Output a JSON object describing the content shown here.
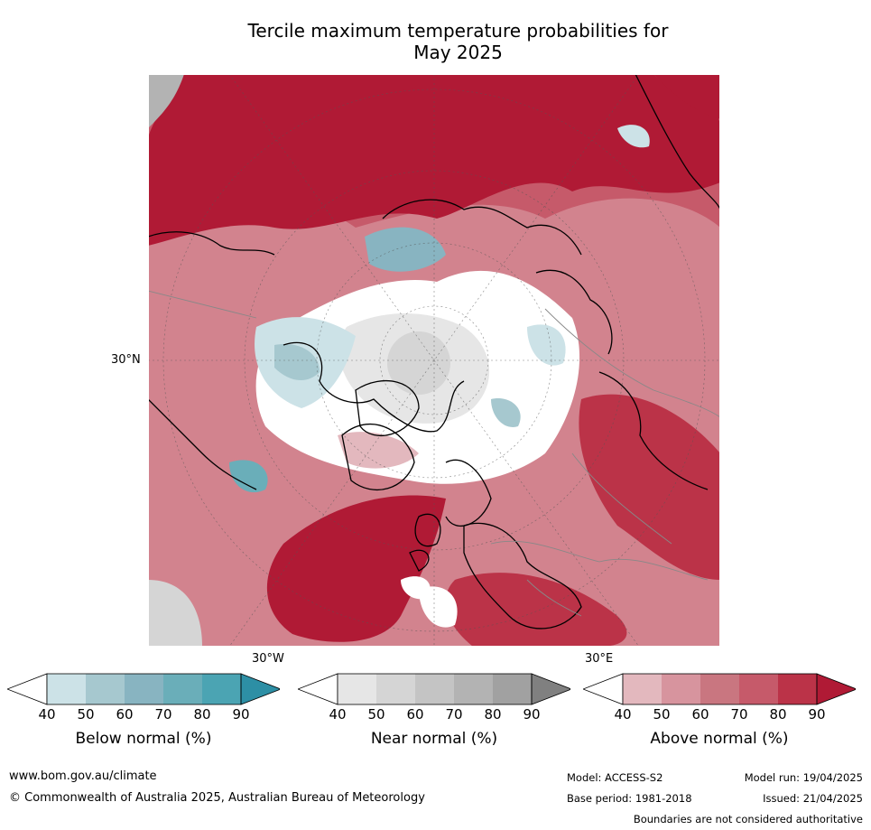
{
  "title_line1": "Tercile maximum temperature probabilities for",
  "title_line2": "May 2025",
  "map": {
    "lat_label": "30°N",
    "lon_label_left": "30°W",
    "lon_label_right": "30°E"
  },
  "colorbars": [
    {
      "label": "Below normal (%)",
      "ticks": [
        "40",
        "50",
        "60",
        "70",
        "80",
        "90"
      ],
      "colors": [
        "#ffffff",
        "#cce2e7",
        "#a6c8cf",
        "#88b4c1",
        "#6aaeb9",
        "#4ba4b3",
        "#2d8fa5"
      ]
    },
    {
      "label": "Near normal (%)",
      "ticks": [
        "40",
        "50",
        "60",
        "70",
        "80",
        "90"
      ],
      "colors": [
        "#ffffff",
        "#e6e6e6",
        "#d5d5d5",
        "#c4c4c4",
        "#b3b3b3",
        "#a1a1a1",
        "#808080"
      ]
    },
    {
      "label": "Above normal (%)",
      "ticks": [
        "40",
        "50",
        "60",
        "70",
        "80",
        "90"
      ],
      "colors": [
        "#ffffff",
        "#e3b8be",
        "#d7949e",
        "#c97680",
        "#c65a6a",
        "#bb3348",
        "#b01a35"
      ]
    }
  ],
  "footer": {
    "website": "www.bom.gov.au/climate",
    "copyright": "© Commonwealth of Australia 2025, Australian Bureau of Meteorology",
    "model": "Model: ACCESS-S2",
    "base_period": "Base period: 1981-2018",
    "model_run": "Model run: 19/04/2025",
    "issued": "Issued: 21/04/2025",
    "disclaimer": "Boundaries are not considered authoritative"
  }
}
